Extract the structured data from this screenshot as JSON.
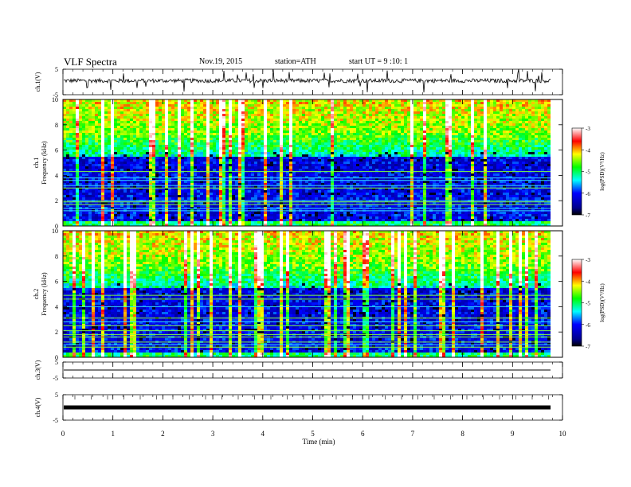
{
  "header": {
    "title": "VLF  Spectra",
    "date": "Nov.19, 2015",
    "station": "station=ATH",
    "start": "start  UT =   9  :10: 1"
  },
  "chart_data": [
    {
      "type": "line",
      "panel": "ch1-waveform",
      "ylabel": "ch.1(V)",
      "ylim": [
        -5,
        5
      ],
      "yticks": [
        "5",
        "-5"
      ],
      "xlim": [
        0,
        10
      ],
      "data_extent_min": [
        0,
        9.8
      ],
      "trace_baseline": 0.5
    },
    {
      "type": "heatmap",
      "panel": "ch1-spectrogram",
      "ylabel": "ch.1\nFrequency  (kHz)",
      "ylim": [
        0,
        10
      ],
      "yticks": [
        "0",
        "2",
        "4",
        "6",
        "8",
        "10"
      ],
      "xlim": [
        0,
        10
      ],
      "colorbar": {
        "label": "log(PSD)(V²/Hz)",
        "range": [
          -7,
          -3
        ],
        "ticks": [
          "-3",
          "-4",
          "-5",
          "-6",
          "-7"
        ]
      }
    },
    {
      "type": "heatmap",
      "panel": "ch2-spectrogram",
      "ylabel": "ch.2\nFrequency  (kHz)",
      "ylim": [
        0,
        10
      ],
      "yticks": [
        "0",
        "2",
        "4",
        "6",
        "8",
        "10"
      ],
      "xlim": [
        0,
        10
      ],
      "colorbar": {
        "label": "log(PSD)(V²/Hz)",
        "range": [
          -7,
          -3
        ],
        "ticks": [
          "-3",
          "-4",
          "-5",
          "-6",
          "-7"
        ]
      }
    },
    {
      "type": "line",
      "panel": "ch3-waveform",
      "ylabel": "ch.3(V)",
      "ylim": [
        -5,
        5
      ],
      "yticks": [
        "5",
        "-5"
      ],
      "trace_value": 0
    },
    {
      "type": "line",
      "panel": "ch4-waveform",
      "ylabel": "ch.4(V)",
      "ylim": [
        -5,
        5
      ],
      "yticks": [
        "5",
        "-5"
      ],
      "trace_value": 0
    }
  ],
  "xaxis": {
    "label": "Time  (min)",
    "ticks": [
      "0",
      "1",
      "2",
      "3",
      "4",
      "5",
      "6",
      "7",
      "8",
      "9",
      "10"
    ],
    "range": [
      0,
      10
    ]
  }
}
